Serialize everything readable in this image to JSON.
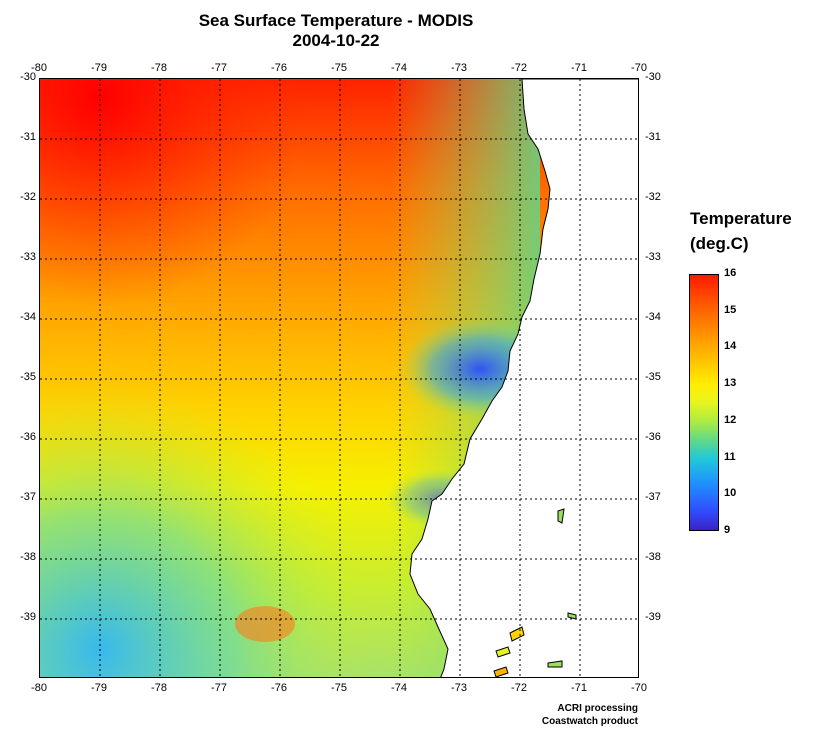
{
  "title": "Sea Surface Temperature - MODIS",
  "date": "2004-10-22",
  "map": {
    "lon_ticks": [
      "-80",
      "-79",
      "-78",
      "-77",
      "-76",
      "-75",
      "-74",
      "-73",
      "-72",
      "-71",
      "-70"
    ],
    "lat_ticks": [
      "-30",
      "-31",
      "-32",
      "-33",
      "-34",
      "-35",
      "-36",
      "-37",
      "-38",
      "-39"
    ],
    "lon_range": [
      -80,
      -70
    ],
    "lat_range": [
      -30,
      -40
    ],
    "land_color": "#ffffff",
    "grid": "dotted"
  },
  "legend": {
    "title_line1": "Temperature",
    "title_line2": "(deg.C)",
    "ticks": [
      "16",
      "15",
      "14",
      "13",
      "12",
      "11",
      "10",
      "9"
    ],
    "range": [
      9,
      16
    ],
    "colors": [
      "#3a22c8",
      "#1f8fff",
      "#20c8d8",
      "#5fd88a",
      "#e6f520",
      "#ffc000",
      "#ff5000",
      "#ff1a00"
    ]
  },
  "credit": {
    "line1": "ACRI processing",
    "line2": "Coastwatch product"
  }
}
